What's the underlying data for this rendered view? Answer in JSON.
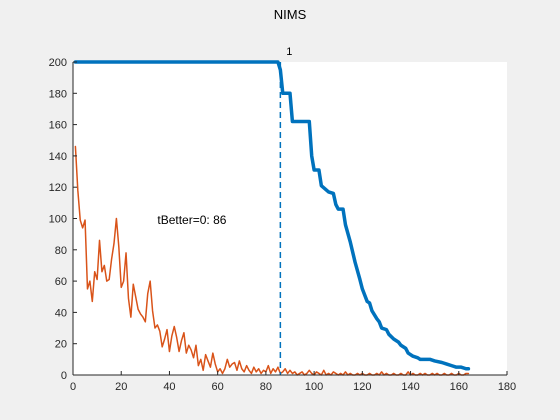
{
  "chart_data": {
    "type": "line",
    "title": "NIMS",
    "xlabel": "",
    "ylabel": "",
    "xlim": [
      0,
      180
    ],
    "ylim": [
      0,
      200
    ],
    "xticks": [
      0,
      20,
      40,
      60,
      80,
      100,
      120,
      140,
      160,
      180
    ],
    "yticks": [
      0,
      20,
      40,
      60,
      80,
      100,
      120,
      140,
      160,
      180,
      200
    ],
    "grid": false,
    "annotation": "tBetter=0: 86",
    "annotation_pos": [
      35,
      99
    ],
    "marker_label": "1",
    "vline_x": 86,
    "series": [
      {
        "color": "#0072BD",
        "style": "solid-thick",
        "points": [
          [
            1,
            200
          ],
          [
            20,
            200
          ],
          [
            40,
            200
          ],
          [
            60,
            200
          ],
          [
            85,
            200
          ],
          [
            86,
            195
          ],
          [
            87,
            180
          ],
          [
            90,
            180
          ],
          [
            91,
            162
          ],
          [
            98,
            162
          ],
          [
            99,
            140
          ],
          [
            100,
            131
          ],
          [
            102,
            131
          ],
          [
            103,
            121
          ],
          [
            106,
            117
          ],
          [
            108,
            116
          ],
          [
            109,
            109
          ],
          [
            110,
            106
          ],
          [
            112,
            106
          ],
          [
            113,
            96
          ],
          [
            115,
            85
          ],
          [
            117,
            72
          ],
          [
            119,
            61
          ],
          [
            120,
            55
          ],
          [
            122,
            47
          ],
          [
            123,
            46
          ],
          [
            124,
            41
          ],
          [
            126,
            36
          ],
          [
            127,
            34
          ],
          [
            128,
            30
          ],
          [
            130,
            29
          ],
          [
            131,
            26
          ],
          [
            133,
            23
          ],
          [
            135,
            21
          ],
          [
            136,
            19
          ],
          [
            138,
            17
          ],
          [
            139,
            14
          ],
          [
            141,
            12
          ],
          [
            143,
            11
          ],
          [
            144,
            10
          ],
          [
            148,
            10
          ],
          [
            150,
            9
          ],
          [
            153,
            8
          ],
          [
            155,
            7
          ],
          [
            157,
            6
          ],
          [
            159,
            5
          ],
          [
            161,
            5
          ],
          [
            163,
            4
          ],
          [
            164,
            4
          ]
        ]
      },
      {
        "color": "#D95319",
        "style": "solid",
        "points": [
          [
            1,
            146
          ],
          [
            2,
            118
          ],
          [
            3,
            99
          ],
          [
            4,
            94
          ],
          [
            5,
            99
          ],
          [
            6,
            55
          ],
          [
            7,
            60
          ],
          [
            8,
            47
          ],
          [
            9,
            66
          ],
          [
            10,
            61
          ],
          [
            11,
            86
          ],
          [
            12,
            66
          ],
          [
            13,
            70
          ],
          [
            14,
            60
          ],
          [
            15,
            61
          ],
          [
            16,
            74
          ],
          [
            17,
            84
          ],
          [
            18,
            100
          ],
          [
            19,
            82
          ],
          [
            20,
            56
          ],
          [
            21,
            60
          ],
          [
            22,
            78
          ],
          [
            23,
            49
          ],
          [
            24,
            37
          ],
          [
            25,
            58
          ],
          [
            26,
            50
          ],
          [
            27,
            42
          ],
          [
            28,
            39
          ],
          [
            29,
            37
          ],
          [
            30,
            34
          ],
          [
            31,
            52
          ],
          [
            32,
            60
          ],
          [
            33,
            41
          ],
          [
            34,
            30
          ],
          [
            35,
            32
          ],
          [
            36,
            28
          ],
          [
            37,
            18
          ],
          [
            38,
            23
          ],
          [
            39,
            29
          ],
          [
            40,
            15
          ],
          [
            41,
            25
          ],
          [
            42,
            31
          ],
          [
            43,
            24
          ],
          [
            44,
            15
          ],
          [
            45,
            22
          ],
          [
            46,
            27
          ],
          [
            47,
            14
          ],
          [
            48,
            19
          ],
          [
            49,
            16
          ],
          [
            50,
            11
          ],
          [
            51,
            19
          ],
          [
            52,
            6
          ],
          [
            53,
            10
          ],
          [
            54,
            3
          ],
          [
            55,
            13
          ],
          [
            56,
            9
          ],
          [
            57,
            5
          ],
          [
            58,
            14
          ],
          [
            59,
            7
          ],
          [
            60,
            2
          ],
          [
            61,
            4
          ],
          [
            62,
            1
          ],
          [
            63,
            4
          ],
          [
            64,
            10
          ],
          [
            65,
            5
          ],
          [
            66,
            7
          ],
          [
            67,
            8
          ],
          [
            68,
            3
          ],
          [
            69,
            9
          ],
          [
            70,
            4
          ],
          [
            71,
            2
          ],
          [
            72,
            6
          ],
          [
            73,
            3
          ],
          [
            74,
            1
          ],
          [
            75,
            5
          ],
          [
            76,
            2
          ],
          [
            77,
            4
          ],
          [
            78,
            1
          ],
          [
            79,
            3
          ],
          [
            80,
            2
          ],
          [
            81,
            6
          ],
          [
            82,
            1
          ],
          [
            83,
            4
          ],
          [
            84,
            2
          ],
          [
            85,
            5
          ],
          [
            86,
            1
          ],
          [
            87,
            2
          ],
          [
            88,
            4
          ],
          [
            89,
            1
          ],
          [
            90,
            3
          ],
          [
            91,
            1
          ],
          [
            92,
            2
          ],
          [
            93,
            0
          ],
          [
            94,
            1
          ],
          [
            95,
            2
          ],
          [
            96,
            0
          ],
          [
            97,
            1
          ],
          [
            98,
            3
          ],
          [
            99,
            1
          ],
          [
            100,
            0
          ],
          [
            101,
            2
          ],
          [
            102,
            1
          ],
          [
            103,
            0
          ],
          [
            104,
            3
          ],
          [
            105,
            0
          ],
          [
            106,
            1
          ],
          [
            107,
            0
          ],
          [
            108,
            2
          ],
          [
            109,
            1
          ],
          [
            110,
            0
          ],
          [
            111,
            1
          ],
          [
            112,
            0
          ],
          [
            113,
            2
          ],
          [
            114,
            0
          ],
          [
            115,
            1
          ],
          [
            116,
            0
          ],
          [
            117,
            0
          ],
          [
            118,
            1
          ],
          [
            119,
            0
          ],
          [
            120,
            1
          ],
          [
            121,
            0
          ],
          [
            122,
            0
          ],
          [
            123,
            1
          ],
          [
            124,
            0
          ],
          [
            125,
            0
          ],
          [
            126,
            1
          ],
          [
            127,
            0
          ],
          [
            128,
            2
          ],
          [
            129,
            0
          ],
          [
            130,
            1
          ],
          [
            131,
            0
          ],
          [
            132,
            0
          ],
          [
            133,
            1
          ],
          [
            134,
            0
          ],
          [
            135,
            0
          ],
          [
            136,
            1
          ],
          [
            137,
            0
          ],
          [
            138,
            0
          ],
          [
            139,
            2
          ],
          [
            140,
            0
          ],
          [
            141,
            1
          ],
          [
            142,
            0
          ],
          [
            143,
            0
          ],
          [
            144,
            1
          ],
          [
            145,
            0
          ],
          [
            146,
            1
          ],
          [
            147,
            0
          ],
          [
            148,
            0
          ],
          [
            149,
            1
          ],
          [
            150,
            0
          ],
          [
            151,
            1
          ],
          [
            152,
            0
          ],
          [
            153,
            0
          ],
          [
            154,
            1
          ],
          [
            155,
            0
          ],
          [
            156,
            0
          ],
          [
            157,
            1
          ],
          [
            158,
            0
          ],
          [
            159,
            0
          ],
          [
            160,
            1
          ],
          [
            161,
            0
          ],
          [
            162,
            0
          ],
          [
            163,
            1
          ],
          [
            164,
            1
          ]
        ]
      }
    ]
  }
}
